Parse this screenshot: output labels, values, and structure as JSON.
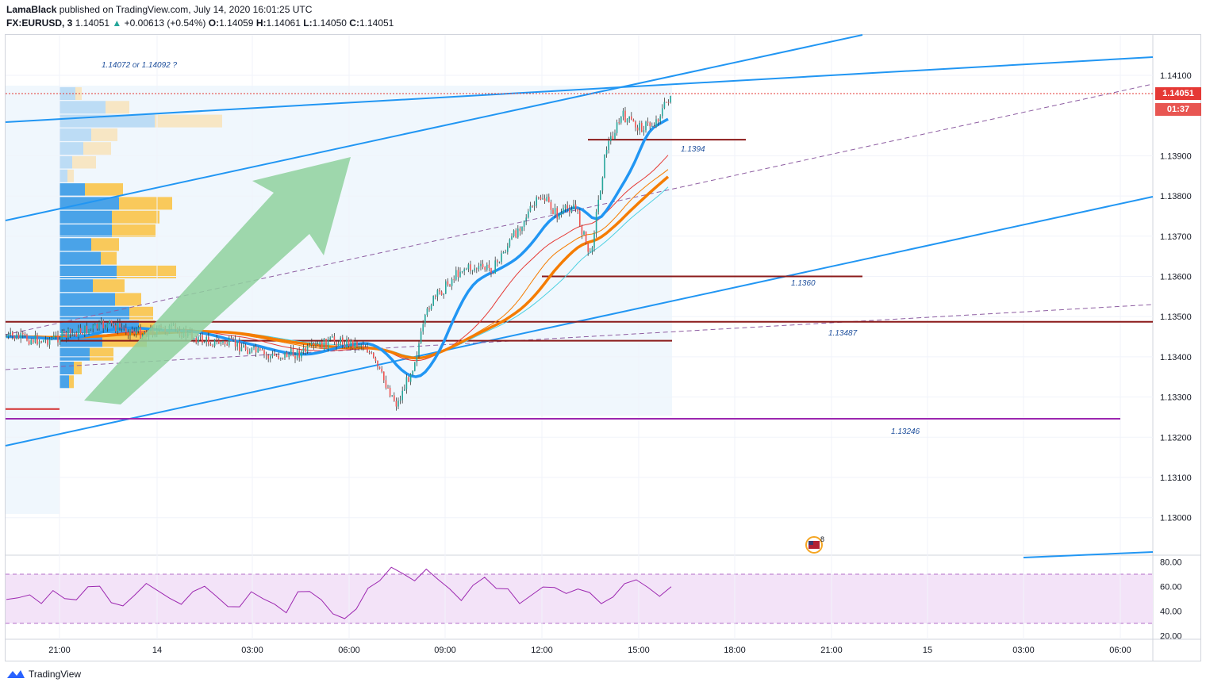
{
  "header": {
    "publisher": "LamaBlack",
    "published_text": "published on TradingView.com, July 14, 2020 16:01:25 UTC",
    "symbol": "FX:EURUSD, 3",
    "last": "1.14051",
    "change_arrow": "▲",
    "change": "+0.00613 (+0.54%)",
    "o_label": "O:",
    "o": "1.14059",
    "h_label": "H:",
    "h": "1.14061",
    "l_label": "L:",
    "l": "1.14050",
    "c_label": "C:",
    "c": "1.14051"
  },
  "price_axis": {
    "ticks": [
      "1.14100",
      "1.13900",
      "1.13800",
      "1.13700",
      "1.13600",
      "1.13500",
      "1.13400",
      "1.13300",
      "1.13200",
      "1.13100",
      "1.13000"
    ],
    "current_price": "1.14051",
    "countdown": "01:37"
  },
  "rsi_axis": {
    "ticks": [
      "80.00",
      "60.00",
      "40.00",
      "20.00"
    ]
  },
  "time_axis": {
    "ticks": [
      "21:00",
      "14",
      "03:00",
      "06:00",
      "09:00",
      "12:00",
      "15:00",
      "18:00",
      "21:00",
      "15",
      "03:00",
      "06:00"
    ]
  },
  "annotations": {
    "target_question": "1.14072 or 1.14092 ?",
    "level_1394": "1.1394",
    "level_1360": "1.1360",
    "level_13487": "1.13487",
    "level_13246": "1.13246"
  },
  "event_badge": {
    "icon": "us-flag-icon",
    "count": "8"
  },
  "footer": {
    "logo_icon": "tradingview-logo-icon",
    "brand": "TradingView"
  },
  "colors": {
    "trendline": "#2196f3",
    "ema_fast": "#2196f3",
    "ema_slow": "#f57c00",
    "resistance": "#8b1a1a",
    "support_purple": "#9c27b0",
    "rsi": "#9c27b0",
    "arrow": "#8fd19e",
    "price_line": "#e53935"
  },
  "chart_data": {
    "type": "candlestick",
    "symbol": "FX:EURUSD",
    "timeframe": "3",
    "ylim": [
      1.1292,
      1.1418
    ],
    "x_range": [
      "2020-07-13 19:30",
      "2020-07-15 06:45"
    ],
    "horizontal_levels": [
      1.1394,
      1.136,
      1.13487,
      1.13246,
      1.1344,
      1.1327
    ],
    "close_path": [
      {
        "t": "19:30",
        "p": 1.1345
      },
      {
        "t": "20:30",
        "p": 1.1344
      },
      {
        "t": "21:30",
        "p": 1.1346
      },
      {
        "t": "22:30",
        "p": 1.1348
      },
      {
        "t": "23:30",
        "p": 1.1346
      },
      {
        "t": "00:30",
        "p": 1.1347
      },
      {
        "t": "01:30",
        "p": 1.1344
      },
      {
        "t": "02:30",
        "p": 1.1343
      },
      {
        "t": "03:30",
        "p": 1.134
      },
      {
        "t": "04:30",
        "p": 1.1341
      },
      {
        "t": "05:30",
        "p": 1.1344
      },
      {
        "t": "06:30",
        "p": 1.1343
      },
      {
        "t": "07:30",
        "p": 1.1328
      },
      {
        "t": "08:00",
        "p": 1.1338
      },
      {
        "t": "08:30",
        "p": 1.1353
      },
      {
        "t": "09:30",
        "p": 1.1362
      },
      {
        "t": "10:30",
        "p": 1.1362
      },
      {
        "t": "11:30",
        "p": 1.1375
      },
      {
        "t": "12:00",
        "p": 1.138
      },
      {
        "t": "12:30",
        "p": 1.1375
      },
      {
        "t": "13:00",
        "p": 1.1378
      },
      {
        "t": "13:30",
        "p": 1.1365
      },
      {
        "t": "14:00",
        "p": 1.1392
      },
      {
        "t": "14:30",
        "p": 1.14
      },
      {
        "t": "15:00",
        "p": 1.1397
      },
      {
        "t": "15:30",
        "p": 1.1398
      },
      {
        "t": "16:00",
        "p": 1.14051
      }
    ],
    "rsi": {
      "ylim": [
        15,
        85
      ],
      "bands": [
        30,
        70
      ],
      "values": [
        52,
        48,
        55,
        50,
        58,
        53,
        49,
        56,
        62,
        50,
        47,
        56,
        65,
        58,
        54,
        48,
        53,
        60,
        52,
        46,
        40,
        55,
        48,
        44,
        36,
        52,
        58,
        48,
        40,
        30,
        42,
        55,
        66,
        74,
        70,
        63,
        72,
        66,
        58,
        52,
        64,
        70,
        62,
        55,
        49,
        56,
        62,
        57,
        53,
        58,
        55,
        49,
        54,
        60,
        62,
        58,
        56,
        60
      ]
    }
  }
}
